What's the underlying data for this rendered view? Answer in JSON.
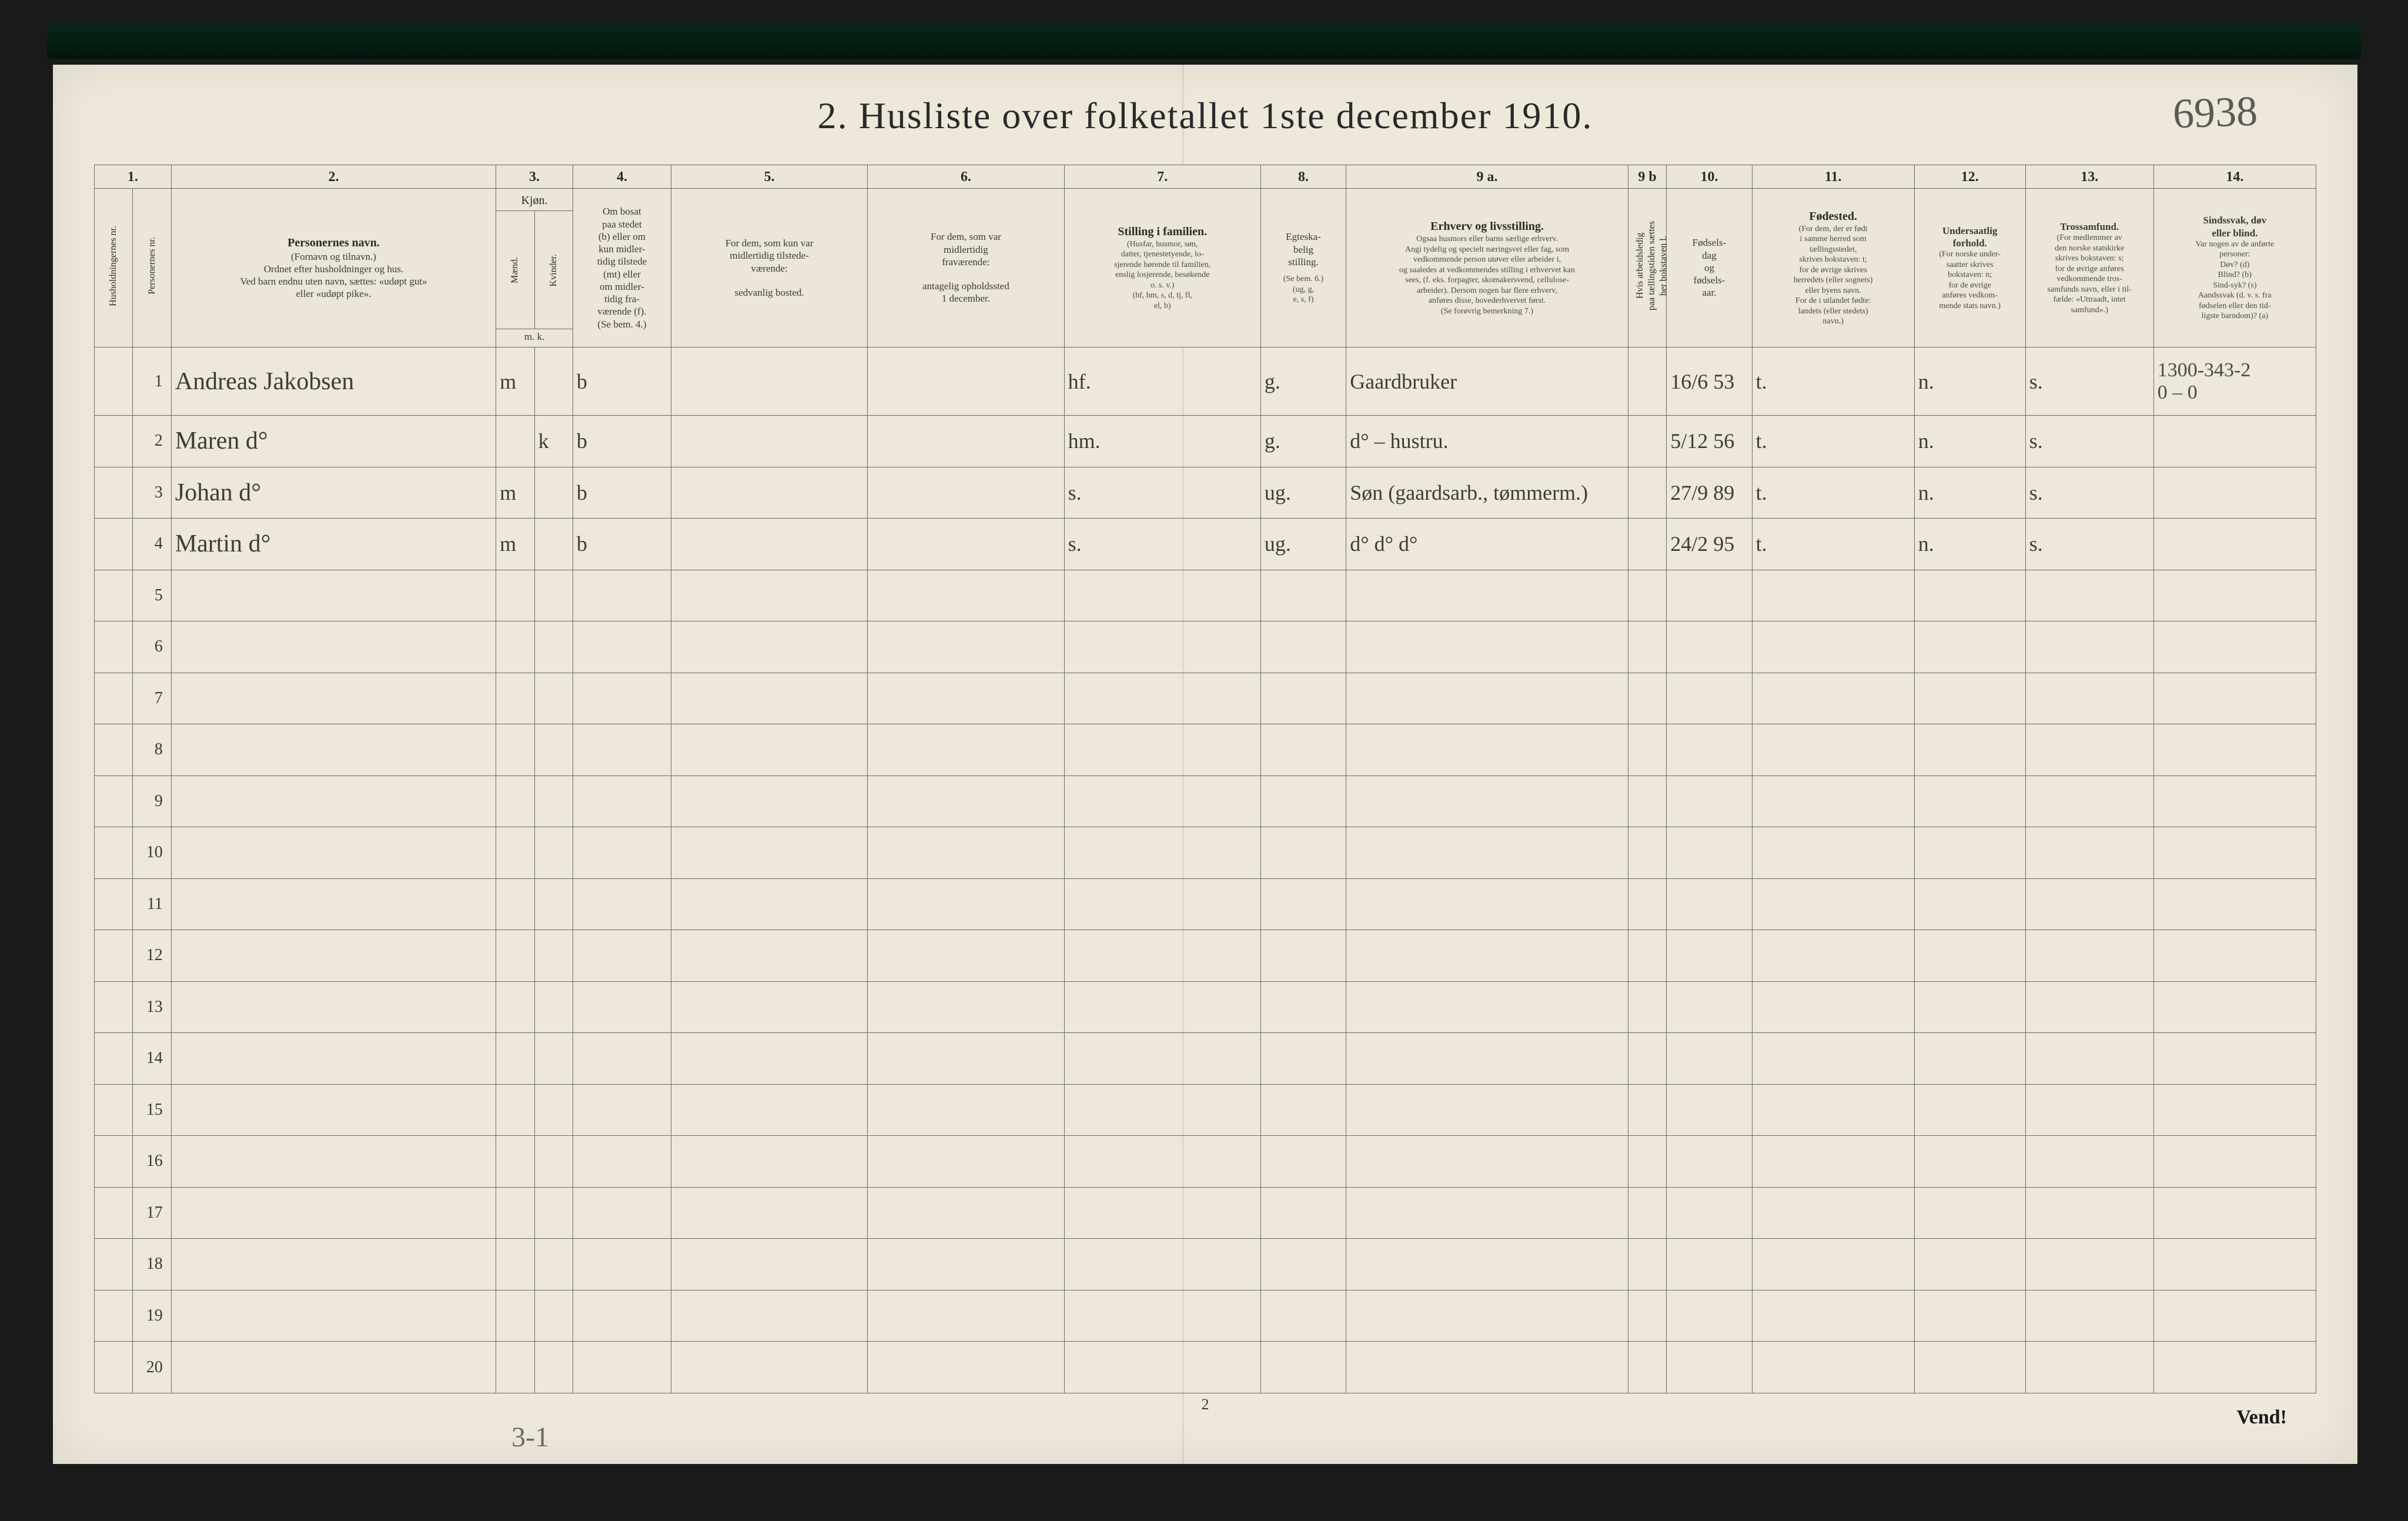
{
  "title": "2.  Husliste over folketallet 1ste december 1910.",
  "topright_handwritten": "6938",
  "footer_page_number": "2",
  "vend": "Vend!",
  "bottom_handwritten": "3-1",
  "margin_col14_note": "1300-343-2",
  "margin_col14_note2": "0 – 0",
  "columns": {
    "num": [
      "1.",
      "2.",
      "3.",
      "4.",
      "5.",
      "6.",
      "7.",
      "8.",
      "9 a.",
      "9 b",
      "10.",
      "11.",
      "12.",
      "13.",
      "14."
    ],
    "c1a": "Husholdningernes nr.",
    "c1b": "Personernes nr.",
    "c2_title": "Personernes navn.",
    "c2_sub": "(Fornavn og tilnavn.)\nOrdnet efter husholdninger og hus.\nVed barn endnu uten navn, sættes: «udøpt gut»\neller «udøpt pike».",
    "c3_title": "Kjøn.",
    "c3a": "Mænd.",
    "c3b": "Kvinder.",
    "c3_sub": "m.  k.",
    "c4_title": "Om bosat\npaa stedet\n(b) eller om\nkun midler-\ntidig tilstede\n(mt) eller\nom midler-\ntidig fra-\nværende (f).\n(Se bem. 4.)",
    "c5_title": "For dem, som kun var\nmidlertidig tilstede-\nværende:",
    "c5_sub": "sedvanlig bosted.",
    "c6_title": "For dem, som var\nmidlertidig\nfraværende:",
    "c6_sub": "antagelig opholdssted\n1 december.",
    "c7_title": "Stilling i familien.",
    "c7_sub": "(Husfar, husmor, søn,\ndatter, tjenestetyende, lo-\nsjerende hørende til familien,\nenslig losjerende, besøkende\no. s. v.)\n(hf, hm, s, d, tj, fl,\nel, b)",
    "c8_title": "Egteska-\nbelig\nstilling.",
    "c8_sub": "(Se bem. 6.)\n(ug, g,\ne, s, f)",
    "c9a_title": "Erhverv og livsstilling.",
    "c9a_sub": "Ogsaa husmors eller barns særlige erhverv.\nAngi tydelig og specielt næringsvei eller fag, som\nvedkommende person utøver eller arbeider i,\nog saaledes at vedkommendes stilling i erhvervet kan\nsees, (f. eks. forpagter, skomakersvend, cellulose-\narbeider). Dersom nogen har flere erhverv,\nanføres disse, hovederhvervet først.\n(Se forøvrig bemerkning 7.)",
    "c9b_title": "Hvis arbeidsledig\npaa tællingstiden sættes\nher bokstaven l.",
    "c10_title": "Fødsels-\ndag\nog\nfødsels-\naar.",
    "c11_title": "Fødested.",
    "c11_sub": "(For dem, der er født\ni samme herred som\ntællingsstedet,\nskrives bokstaven: t;\nfor de øvrige skrives\nherredets (eller sognets)\neller byens navn.\nFor de i utlandet fødte:\nlandets (eller stedets)\nnavn.)",
    "c12_title": "Undersaatlig\nforhold.",
    "c12_sub": "(For norske under-\nsaatter skrives\nbokstaven: n;\nfor de øvrige\nanføres vedkom-\nmende stats navn.)",
    "c13_title": "Trossamfund.",
    "c13_sub": "(For medlemmer av\nden norske statskirke\nskrives bokstaven: s;\nfor de øvrige anføres\nvedkommende tros-\nsamfunds navn, eller i til-\nfælde: «Uttraadt, intet\nsamfund».)",
    "c14_title": "Sindssvak, døv\neller blind.",
    "c14_sub": "Var nogen av de anførte\npersoner:\nDøv?        (d)\nBlind?      (b)\nSind-syk? (s)\nAandssvak (d. v. s. fra\nfødselen eller den tid-\nligste barndom)? (a)"
  },
  "rows": [
    {
      "n": "1",
      "name": "Andreas Jakobsen",
      "m": "m",
      "k": "",
      "b": "b",
      "c5": "",
      "c6": "",
      "c7": "hf.",
      "c8": "g.",
      "c9": "Gaardbruker",
      "c10": "16/6 53",
      "c11": "t.",
      "c12": "n.",
      "c13": "s."
    },
    {
      "n": "2",
      "name": "Maren      d°",
      "m": "",
      "k": "k",
      "b": "b",
      "c5": "",
      "c6": "",
      "c7": "hm.",
      "c8": "g.",
      "c9": "d° – hustru.",
      "c10": "5/12 56",
      "c11": "t.",
      "c12": "n.",
      "c13": "s."
    },
    {
      "n": "3",
      "name": "Johan      d°",
      "m": "m",
      "k": "",
      "b": "b",
      "c5": "",
      "c6": "",
      "c7": "s.",
      "c8": "ug.",
      "c9": "Søn (gaardsarb., tømmerm.)",
      "c10": "27/9 89",
      "c11": "t.",
      "c12": "n.",
      "c13": "s."
    },
    {
      "n": "4",
      "name": "Martin     d°",
      "m": "m",
      "k": "",
      "b": "b",
      "c5": "",
      "c6": "",
      "c7": "s.",
      "c8": "ug.",
      "c9": "d°     d°        d°",
      "c10": "24/2 95",
      "c11": "t.",
      "c12": "n.",
      "c13": "s."
    }
  ],
  "empty_row_count": 16,
  "colors": {
    "paper": "#ede8da",
    "ink": "#2a2a28",
    "rule": "#6a6a60",
    "handwriting": "#3e3c36",
    "frame": "#1a1a1a"
  }
}
